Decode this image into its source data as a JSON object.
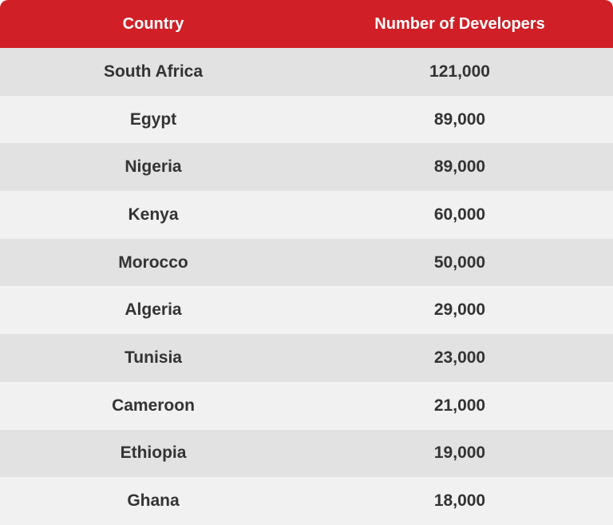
{
  "table": {
    "headers": {
      "country": "Country",
      "developers": "Number of Developers"
    },
    "rows": [
      {
        "country": "South Africa",
        "developers": "121,000"
      },
      {
        "country": "Egypt",
        "developers": "89,000"
      },
      {
        "country": "Nigeria",
        "developers": "89,000"
      },
      {
        "country": "Kenya",
        "developers": "60,000"
      },
      {
        "country": "Morocco",
        "developers": "50,000"
      },
      {
        "country": "Algeria",
        "developers": "29,000"
      },
      {
        "country": "Tunisia",
        "developers": "23,000"
      },
      {
        "country": "Cameroon",
        "developers": "21,000"
      },
      {
        "country": "Ethiopia",
        "developers": "19,000"
      },
      {
        "country": "Ghana",
        "developers": "18,000"
      }
    ]
  },
  "colors": {
    "header_bg": "#d01f27",
    "header_text": "#ffffff",
    "row_dark": "#e3e2e2",
    "row_light": "#f1f1f1",
    "cell_text": "#333333"
  }
}
